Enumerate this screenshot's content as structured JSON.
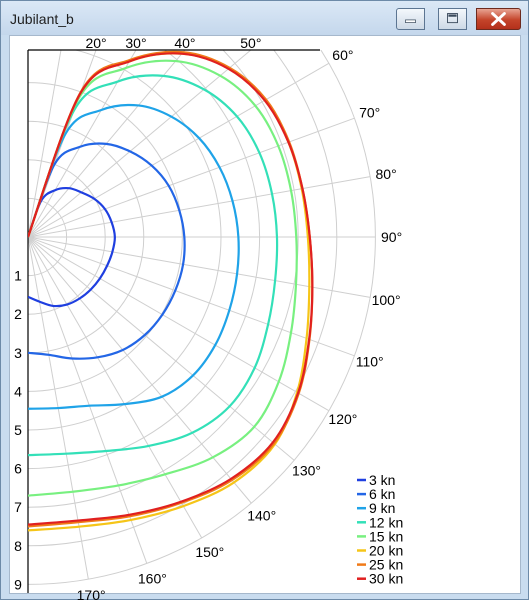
{
  "window": {
    "title": "Jubilant_b",
    "minimize_icon": "minimize-icon",
    "maximize_icon": "maximize-icon",
    "close_icon": "close-icon"
  },
  "chart_data": {
    "type": "line",
    "coordinate_system": "polar",
    "angle_unit": "degrees",
    "angle_range": [
      0,
      180
    ],
    "radius_range": [
      0,
      9
    ],
    "angle_ticks": [
      {
        "angle": 20,
        "label": "20°"
      },
      {
        "angle": 30,
        "label": "30°"
      },
      {
        "angle": 40,
        "label": "40°"
      },
      {
        "angle": 50,
        "label": "50°"
      },
      {
        "angle": 60,
        "label": "60°"
      },
      {
        "angle": 70,
        "label": "70°"
      },
      {
        "angle": 80,
        "label": "80°"
      },
      {
        "angle": 90,
        "label": "90°"
      },
      {
        "angle": 100,
        "label": "100°"
      },
      {
        "angle": 110,
        "label": "110°"
      },
      {
        "angle": 120,
        "label": "120°"
      },
      {
        "angle": 130,
        "label": "130°"
      },
      {
        "angle": 140,
        "label": "140°"
      },
      {
        "angle": 150,
        "label": "150°"
      },
      {
        "angle": 160,
        "label": "160°"
      },
      {
        "angle": 170,
        "label": "170°"
      }
    ],
    "radius_ticks": [
      "1",
      "2",
      "3",
      "4",
      "5",
      "6",
      "7",
      "8",
      "9"
    ],
    "grid": true,
    "legend_position": "bottom-right",
    "series": [
      {
        "name": "3 kn",
        "color": "#1f3fe0",
        "points": [
          [
            0,
            0
          ],
          [
            20,
            1.0
          ],
          [
            30,
            1.4
          ],
          [
            40,
            1.65
          ],
          [
            50,
            1.8
          ],
          [
            60,
            1.98
          ],
          [
            70,
            2.12
          ],
          [
            80,
            2.2
          ],
          [
            90,
            2.25
          ],
          [
            100,
            2.22
          ],
          [
            110,
            2.18
          ],
          [
            120,
            2.15
          ],
          [
            130,
            2.12
          ],
          [
            140,
            2.08
          ],
          [
            150,
            2.02
          ],
          [
            160,
            1.9
          ],
          [
            170,
            1.7
          ],
          [
            180,
            1.55
          ]
        ]
      },
      {
        "name": "6 kn",
        "color": "#2366e6",
        "points": [
          [
            0,
            0
          ],
          [
            20,
            2.0
          ],
          [
            30,
            2.7
          ],
          [
            40,
            3.15
          ],
          [
            50,
            3.45
          ],
          [
            60,
            3.7
          ],
          [
            70,
            3.88
          ],
          [
            80,
            3.98
          ],
          [
            90,
            4.05
          ],
          [
            100,
            4.08
          ],
          [
            110,
            4.06
          ],
          [
            120,
            4.02
          ],
          [
            130,
            3.95
          ],
          [
            140,
            3.82
          ],
          [
            150,
            3.6
          ],
          [
            160,
            3.35
          ],
          [
            170,
            3.1
          ],
          [
            180,
            3.0
          ]
        ]
      },
      {
        "name": "9 kn",
        "color": "#1fa3e8",
        "points": [
          [
            0,
            0
          ],
          [
            20,
            2.85
          ],
          [
            30,
            3.8
          ],
          [
            40,
            4.45
          ],
          [
            50,
            4.85
          ],
          [
            60,
            5.12
          ],
          [
            70,
            5.28
          ],
          [
            80,
            5.38
          ],
          [
            90,
            5.45
          ],
          [
            100,
            5.5
          ],
          [
            110,
            5.55
          ],
          [
            120,
            5.6
          ],
          [
            130,
            5.58
          ],
          [
            140,
            5.4
          ],
          [
            150,
            5.0
          ],
          [
            160,
            4.65
          ],
          [
            170,
            4.5
          ],
          [
            180,
            4.45
          ]
        ]
      },
      {
        "name": "12 kn",
        "color": "#33e0b8",
        "points": [
          [
            0,
            0
          ],
          [
            20,
            3.5
          ],
          [
            30,
            4.65
          ],
          [
            40,
            5.45
          ],
          [
            50,
            5.95
          ],
          [
            60,
            6.25
          ],
          [
            70,
            6.38
          ],
          [
            80,
            6.42
          ],
          [
            90,
            6.45
          ],
          [
            100,
            6.5
          ],
          [
            110,
            6.62
          ],
          [
            120,
            6.78
          ],
          [
            130,
            6.82
          ],
          [
            140,
            6.62
          ],
          [
            150,
            6.25
          ],
          [
            160,
            5.9
          ],
          [
            170,
            5.7
          ],
          [
            180,
            5.65
          ]
        ]
      },
      {
        "name": "15 kn",
        "color": "#78f080",
        "points": [
          [
            0,
            0
          ],
          [
            20,
            3.8
          ],
          [
            30,
            5.05
          ],
          [
            40,
            5.95
          ],
          [
            50,
            6.5
          ],
          [
            60,
            6.8
          ],
          [
            70,
            6.9
          ],
          [
            80,
            6.92
          ],
          [
            90,
            6.95
          ],
          [
            100,
            7.05
          ],
          [
            110,
            7.25
          ],
          [
            120,
            7.5
          ],
          [
            130,
            7.65
          ],
          [
            140,
            7.45
          ],
          [
            150,
            7.1
          ],
          [
            160,
            6.85
          ],
          [
            170,
            6.7
          ],
          [
            180,
            6.7
          ]
        ]
      },
      {
        "name": "20 kn",
        "color": "#f5c518",
        "points": [
          [
            0,
            0
          ],
          [
            20,
            3.95
          ],
          [
            30,
            5.25
          ],
          [
            40,
            6.2
          ],
          [
            50,
            6.8
          ],
          [
            60,
            7.1
          ],
          [
            70,
            7.18
          ],
          [
            80,
            7.2
          ],
          [
            90,
            7.25
          ],
          [
            100,
            7.4
          ],
          [
            110,
            7.68
          ],
          [
            120,
            8.05
          ],
          [
            130,
            8.35
          ],
          [
            140,
            8.3
          ],
          [
            150,
            8.05
          ],
          [
            160,
            7.8
          ],
          [
            170,
            7.62
          ],
          [
            180,
            7.6
          ]
        ]
      },
      {
        "name": "25 kn",
        "color": "#f07a18",
        "points": [
          [
            0,
            0
          ],
          [
            20,
            4.0
          ],
          [
            30,
            5.3
          ],
          [
            40,
            6.25
          ],
          [
            50,
            6.82
          ],
          [
            60,
            7.12
          ],
          [
            70,
            7.2
          ],
          [
            80,
            7.22
          ],
          [
            90,
            7.3
          ],
          [
            100,
            7.48
          ],
          [
            110,
            7.76
          ],
          [
            120,
            8.1
          ],
          [
            130,
            8.32
          ],
          [
            140,
            8.22
          ],
          [
            150,
            7.95
          ],
          [
            160,
            7.7
          ],
          [
            170,
            7.5
          ],
          [
            180,
            7.5
          ]
        ]
      },
      {
        "name": "30 kn",
        "color": "#e02020",
        "points": [
          [
            0,
            0
          ],
          [
            20,
            3.95
          ],
          [
            30,
            5.25
          ],
          [
            40,
            6.2
          ],
          [
            50,
            6.78
          ],
          [
            60,
            7.08
          ],
          [
            70,
            7.18
          ],
          [
            80,
            7.22
          ],
          [
            90,
            7.3
          ],
          [
            100,
            7.48
          ],
          [
            110,
            7.75
          ],
          [
            120,
            8.08
          ],
          [
            130,
            8.28
          ],
          [
            140,
            8.18
          ],
          [
            150,
            7.92
          ],
          [
            160,
            7.66
          ],
          [
            170,
            7.46
          ],
          [
            180,
            7.45
          ]
        ]
      }
    ]
  }
}
